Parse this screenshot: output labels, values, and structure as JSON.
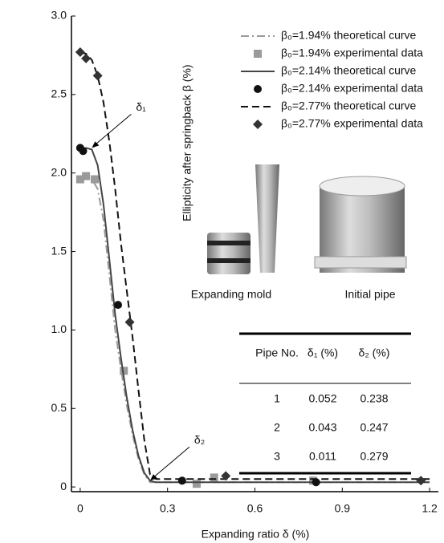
{
  "chart_data": {
    "type": "line",
    "xlabel": "Expanding ratio δ (%)",
    "ylabel": "Ellipticity after springback β (%)",
    "xlim": [
      -0.03,
      1.23
    ],
    "ylim": [
      -0.03,
      3.0
    ],
    "xticks": [
      0,
      0.3,
      0.6,
      0.9,
      1.2
    ],
    "yticks": [
      0,
      0.5,
      {
        "value": 1,
        "label": "1.0"
      },
      1.5,
      {
        "value": 2,
        "label": "2.0"
      },
      2.5,
      {
        "value": 3,
        "label": "3.0"
      }
    ],
    "legend": "upper right",
    "series": [
      {
        "name": "β₀=1.94% theoretical curve",
        "color": "#9a9a9a",
        "style": "dashdot",
        "x": [
          0,
          0.02,
          0.04,
          0.06,
          0.08,
          0.1,
          0.12,
          0.14,
          0.16,
          0.18,
          0.2,
          0.22,
          0.24,
          0.26,
          0.3,
          0.6,
          0.9,
          1.2
        ],
        "values": [
          1.97,
          1.97,
          1.96,
          1.9,
          1.7,
          1.35,
          1.0,
          0.75,
          0.52,
          0.33,
          0.18,
          0.08,
          0.03,
          0.03,
          0.03,
          0.03,
          0.03,
          0.03
        ]
      },
      {
        "name": "β₀=1.94% experimental data",
        "color": "#9a9a9a",
        "marker": "square",
        "x": [
          0,
          0.02,
          0.05,
          0.15,
          0.4,
          0.46,
          0.8
        ],
        "values": [
          1.96,
          1.98,
          1.96,
          0.74,
          0.02,
          0.06,
          0.04
        ]
      },
      {
        "name": "β₀=2.14% theoretical curve",
        "color": "#444444",
        "style": "solid",
        "x": [
          0,
          0.02,
          0.04,
          0.06,
          0.08,
          0.1,
          0.12,
          0.14,
          0.16,
          0.18,
          0.2,
          0.22,
          0.24,
          0.26,
          0.3,
          0.6,
          0.9,
          1.2
        ],
        "values": [
          2.14,
          2.16,
          2.15,
          2.05,
          1.8,
          1.45,
          1.1,
          0.82,
          0.57,
          0.36,
          0.2,
          0.09,
          0.04,
          0.03,
          0.03,
          0.03,
          0.03,
          0.03
        ]
      },
      {
        "name": "β₀=2.14% experimental data",
        "color": "#111111",
        "marker": "circle",
        "x": [
          0,
          0.01,
          0.13,
          0.35,
          0.81
        ],
        "values": [
          2.16,
          2.14,
          1.16,
          0.04,
          0.03
        ]
      },
      {
        "name": "β₀=2.77% theoretical curve",
        "color": "#111111",
        "style": "dashed",
        "x": [
          0,
          0.02,
          0.04,
          0.06,
          0.08,
          0.1,
          0.12,
          0.14,
          0.16,
          0.18,
          0.2,
          0.22,
          0.24,
          0.26,
          0.3,
          0.6,
          0.9,
          1.2
        ],
        "values": [
          2.77,
          2.76,
          2.72,
          2.62,
          2.45,
          2.2,
          1.9,
          1.55,
          1.25,
          0.95,
          0.62,
          0.3,
          0.08,
          0.05,
          0.05,
          0.05,
          0.05,
          0.05
        ]
      },
      {
        "name": "β₀=2.77% experimental data",
        "color": "#333333",
        "marker": "diamond",
        "x": [
          0,
          0.02,
          0.06,
          0.17,
          0.5,
          1.17
        ],
        "values": [
          2.77,
          2.73,
          2.62,
          1.05,
          0.07,
          0.04
        ]
      }
    ],
    "annotations": [
      {
        "text": "δ₁",
        "x": 0.04,
        "y": 2.16
      },
      {
        "text": "δ₂",
        "x": 0.24,
        "y": 0.04
      }
    ]
  },
  "inset": {
    "photos": [
      "Expanding mold",
      "Initial pipe"
    ],
    "table": {
      "columns": [
        "Pipe No.",
        "δ₁ (%)",
        "δ₂ (%)"
      ],
      "rows": [
        [
          "1",
          "0.052",
          "0.238"
        ],
        [
          "2",
          "0.043",
          "0.247"
        ],
        [
          "3",
          "0.011",
          "0.279"
        ]
      ]
    }
  }
}
